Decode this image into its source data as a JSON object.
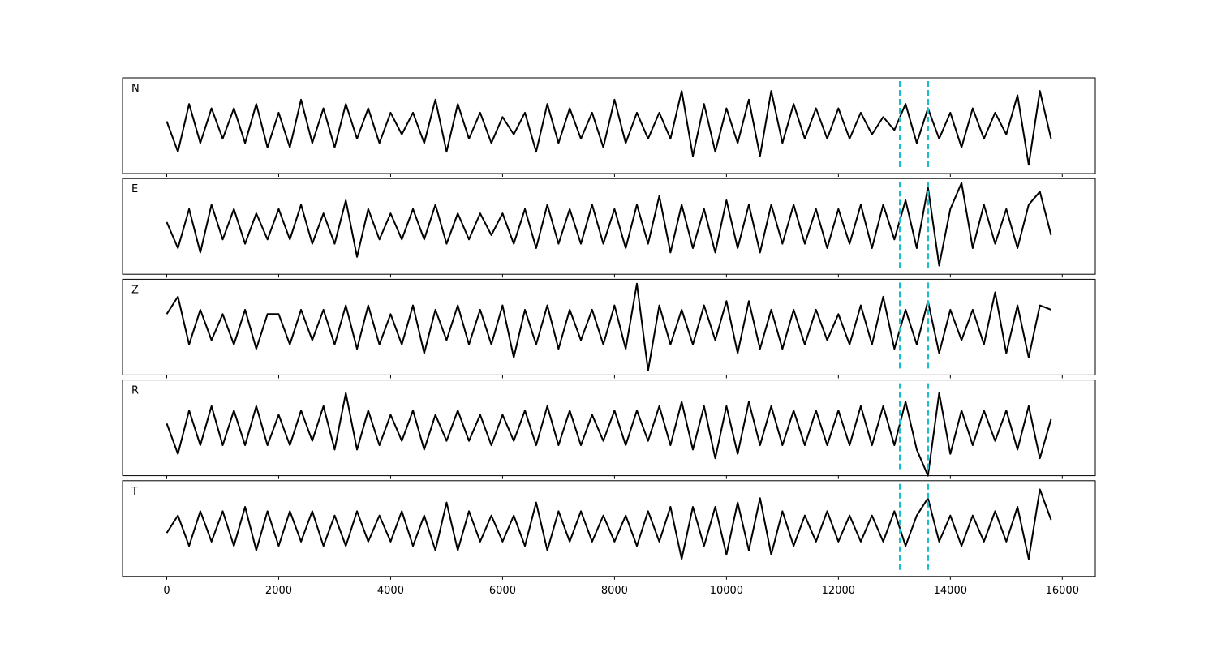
{
  "chart_data": {
    "type": "line",
    "subplots": true,
    "x": [
      0,
      200,
      400,
      600,
      800,
      1000,
      1200,
      1400,
      1600,
      1800,
      2000,
      2200,
      2400,
      2600,
      2800,
      3000,
      3200,
      3400,
      3600,
      3800,
      4000,
      4200,
      4400,
      4600,
      4800,
      5000,
      5200,
      5400,
      5600,
      5800,
      6000,
      6200,
      6400,
      6600,
      6800,
      7000,
      7200,
      7400,
      7600,
      7800,
      8000,
      8200,
      8400,
      8600,
      8800,
      9000,
      9200,
      9400,
      9600,
      9800,
      10000,
      10200,
      10400,
      10600,
      10800,
      11000,
      11200,
      11400,
      11600,
      11800,
      12000,
      12200,
      12400,
      12600,
      12800,
      13000,
      13200,
      13400,
      13600,
      13800,
      14000,
      14200,
      14400,
      14600,
      14800,
      15000,
      15200,
      15400,
      15600,
      15800
    ],
    "xlim": [
      -790,
      16590
    ],
    "xticks": [
      0,
      2000,
      4000,
      6000,
      8000,
      10000,
      12000,
      14000,
      16000
    ],
    "ylim": [
      -1.1,
      1.1
    ],
    "vlines": [
      13100,
      13600
    ],
    "vline_color": "#17becf",
    "series": [
      {
        "name": "N",
        "color": "#000000",
        "values": [
          0.1,
          -0.6,
          0.5,
          -0.4,
          0.4,
          -0.3,
          0.4,
          -0.4,
          0.5,
          -0.5,
          0.3,
          -0.5,
          0.6,
          -0.4,
          0.4,
          -0.5,
          0.5,
          -0.3,
          0.4,
          -0.4,
          0.3,
          -0.2,
          0.3,
          -0.4,
          0.6,
          -0.6,
          0.5,
          -0.3,
          0.3,
          -0.4,
          0.2,
          -0.2,
          0.3,
          -0.6,
          0.5,
          -0.4,
          0.4,
          -0.3,
          0.3,
          -0.5,
          0.6,
          -0.4,
          0.3,
          -0.3,
          0.3,
          -0.3,
          0.8,
          -0.7,
          0.5,
          -0.6,
          0.4,
          -0.4,
          0.6,
          -0.7,
          0.8,
          -0.4,
          0.5,
          -0.3,
          0.4,
          -0.3,
          0.4,
          -0.3,
          0.3,
          -0.2,
          0.2,
          -0.1,
          0.5,
          -0.4,
          0.4,
          -0.3,
          0.3,
          -0.5,
          0.4,
          -0.3,
          0.3,
          -0.2,
          0.7,
          -0.9,
          0.8,
          -0.3
        ]
      },
      {
        "name": "E",
        "color": "#000000",
        "values": [
          0.1,
          -0.5,
          0.4,
          -0.6,
          0.5,
          -0.3,
          0.4,
          -0.4,
          0.3,
          -0.3,
          0.4,
          -0.3,
          0.5,
          -0.4,
          0.3,
          -0.4,
          0.6,
          -0.7,
          0.4,
          -0.3,
          0.3,
          -0.3,
          0.4,
          -0.3,
          0.5,
          -0.4,
          0.3,
          -0.3,
          0.3,
          -0.2,
          0.3,
          -0.4,
          0.4,
          -0.5,
          0.5,
          -0.4,
          0.4,
          -0.4,
          0.5,
          -0.4,
          0.4,
          -0.5,
          0.5,
          -0.4,
          0.7,
          -0.6,
          0.5,
          -0.5,
          0.4,
          -0.6,
          0.6,
          -0.5,
          0.5,
          -0.6,
          0.5,
          -0.4,
          0.5,
          -0.4,
          0.4,
          -0.5,
          0.4,
          -0.4,
          0.5,
          -0.5,
          0.5,
          -0.3,
          0.6,
          -0.5,
          0.9,
          -0.9,
          0.4,
          1.0,
          -0.5,
          0.5,
          -0.4,
          0.4,
          -0.5,
          0.5,
          0.8,
          -0.2
        ]
      },
      {
        "name": "Z",
        "color": "#000000",
        "values": [
          0.3,
          0.7,
          -0.4,
          0.4,
          -0.3,
          0.3,
          -0.4,
          0.4,
          -0.5,
          0.3,
          0.3,
          -0.4,
          0.4,
          -0.3,
          0.4,
          -0.4,
          0.5,
          -0.5,
          0.5,
          -0.4,
          0.3,
          -0.4,
          0.5,
          -0.6,
          0.4,
          -0.3,
          0.5,
          -0.4,
          0.4,
          -0.4,
          0.5,
          -0.7,
          0.4,
          -0.4,
          0.5,
          -0.5,
          0.4,
          -0.3,
          0.4,
          -0.4,
          0.5,
          -0.5,
          1.0,
          -1.0,
          0.5,
          -0.4,
          0.4,
          -0.4,
          0.5,
          -0.3,
          0.6,
          -0.6,
          0.6,
          -0.5,
          0.4,
          -0.5,
          0.4,
          -0.4,
          0.4,
          -0.3,
          0.3,
          -0.4,
          0.5,
          -0.4,
          0.7,
          -0.5,
          0.4,
          -0.4,
          0.6,
          -0.6,
          0.4,
          -0.3,
          0.4,
          -0.4,
          0.8,
          -0.6,
          0.5,
          -0.7,
          0.5,
          0.4
        ]
      },
      {
        "name": "R",
        "color": "#000000",
        "values": [
          0.1,
          -0.6,
          0.4,
          -0.4,
          0.5,
          -0.4,
          0.4,
          -0.4,
          0.5,
          -0.4,
          0.3,
          -0.4,
          0.4,
          -0.3,
          0.5,
          -0.5,
          0.8,
          -0.5,
          0.4,
          -0.4,
          0.3,
          -0.3,
          0.4,
          -0.5,
          0.3,
          -0.3,
          0.4,
          -0.3,
          0.3,
          -0.4,
          0.3,
          -0.3,
          0.4,
          -0.4,
          0.5,
          -0.4,
          0.4,
          -0.4,
          0.3,
          -0.3,
          0.4,
          -0.4,
          0.4,
          -0.3,
          0.5,
          -0.4,
          0.6,
          -0.5,
          0.5,
          -0.7,
          0.5,
          -0.6,
          0.6,
          -0.4,
          0.5,
          -0.4,
          0.4,
          -0.4,
          0.4,
          -0.4,
          0.4,
          -0.4,
          0.5,
          -0.4,
          0.5,
          -0.4,
          0.6,
          -0.5,
          -1.1,
          0.8,
          -0.6,
          0.4,
          -0.4,
          0.4,
          -0.3,
          0.4,
          -0.5,
          0.5,
          -0.7,
          0.2
        ]
      },
      {
        "name": "T",
        "color": "#000000",
        "values": [
          -0.1,
          0.3,
          -0.4,
          0.4,
          -0.3,
          0.4,
          -0.4,
          0.5,
          -0.5,
          0.4,
          -0.4,
          0.4,
          -0.3,
          0.4,
          -0.4,
          0.3,
          -0.4,
          0.4,
          -0.3,
          0.3,
          -0.3,
          0.4,
          -0.4,
          0.3,
          -0.5,
          0.6,
          -0.5,
          0.4,
          -0.3,
          0.3,
          -0.3,
          0.3,
          -0.4,
          0.6,
          -0.5,
          0.4,
          -0.3,
          0.4,
          -0.3,
          0.3,
          -0.3,
          0.3,
          -0.4,
          0.4,
          -0.3,
          0.5,
          -0.7,
          0.5,
          -0.4,
          0.5,
          -0.6,
          0.6,
          -0.5,
          0.7,
          -0.6,
          0.4,
          -0.4,
          0.3,
          -0.3,
          0.4,
          -0.3,
          0.3,
          -0.3,
          0.3,
          -0.3,
          0.4,
          -0.4,
          0.3,
          0.7,
          -0.3,
          0.3,
          -0.4,
          0.3,
          -0.3,
          0.4,
          -0.3,
          0.5,
          -0.7,
          0.9,
          0.2
        ]
      }
    ]
  }
}
